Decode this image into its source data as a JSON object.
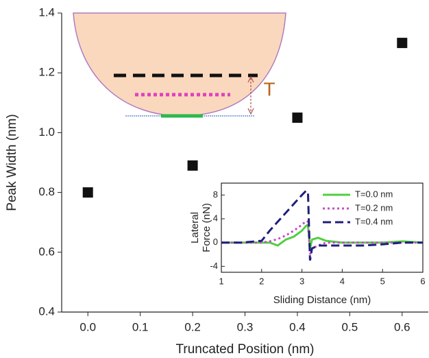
{
  "chart_data": [
    {
      "type": "scatter",
      "xlabel": "Truncated Position (nm)",
      "ylabel": "Peak Width (nm)",
      "x": [
        0,
        0.2,
        0.4,
        0.6
      ],
      "values": [
        0.8,
        0.89,
        1.05,
        1.3
      ],
      "color": "#111111",
      "xlim": [
        -0.05,
        0.65
      ],
      "ylim": [
        0.4,
        1.4
      ],
      "xticks": [
        {
          "value": 0,
          "label": "0.0"
        },
        0.1,
        0.2,
        0.3,
        0.4,
        0.5,
        0.6
      ],
      "yticks": [
        0.4,
        0.6,
        0.8,
        {
          "value": 1,
          "label": "1.0"
        },
        1.2,
        1.4
      ]
    },
    {
      "type": "line",
      "xlabel": "Sliding Distance (nm)",
      "ylabel": [
        "Lateral",
        "Force (nN)"
      ],
      "x": [
        1,
        1.5,
        2,
        2.2,
        2.4,
        2.6,
        2.8,
        3.0,
        3.1,
        3.15,
        3.2,
        3.25,
        3.4,
        3.6,
        4,
        4.5,
        5,
        5.5,
        6
      ],
      "series": [
        {
          "name": "T=0.0 nm",
          "color": "#4fcf3f",
          "linestyle": "solid",
          "values": [
            0,
            0,
            0,
            0,
            -0.5,
            0.5,
            1,
            2,
            2.8,
            3,
            -1,
            0.5,
            0.8,
            0.3,
            0,
            0,
            0,
            0.2,
            0
          ]
        },
        {
          "name": "T=0.2 nm",
          "color": "#c44fc4",
          "linestyle": "dotted",
          "values": [
            0,
            0,
            0,
            0.2,
            0.6,
            1.2,
            2,
            3,
            3.6,
            3.5,
            -2,
            -1,
            -0.5,
            0,
            0,
            0,
            0,
            0,
            0
          ]
        },
        {
          "name": "T=0.4 nm",
          "color": "#1e1e7a",
          "linestyle": "dashed",
          "values": [
            0,
            0,
            0.3,
            2,
            3.5,
            5,
            6.5,
            8,
            8.7,
            8.5,
            -3,
            -1,
            -0.5,
            -0.5,
            -0.5,
            -0.5,
            -0.3,
            0,
            0
          ]
        }
      ],
      "xlim": [
        1,
        6
      ],
      "ylim": [
        -5,
        10
      ],
      "xticks": [
        1,
        2,
        3,
        4,
        5,
        6
      ],
      "yticks": [
        -4,
        0,
        4,
        8
      ],
      "legend": "upper-right"
    }
  ],
  "diagram": {
    "label": "T"
  }
}
